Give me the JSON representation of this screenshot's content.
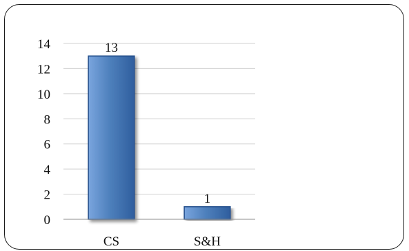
{
  "chart_data": {
    "type": "bar",
    "categories": [
      "CS",
      "S&H"
    ],
    "values": [
      13,
      1
    ],
    "data_labels": [
      "13",
      "1"
    ],
    "ylim": [
      0,
      14
    ],
    "yticks": [
      0,
      2,
      4,
      6,
      8,
      10,
      12,
      14
    ],
    "grid": true,
    "legend": "none",
    "colors": {
      "bar_fill_light": "#7aa5de",
      "bar_fill_mid": "#4f81bd",
      "bar_fill_dark": "#2f5e9e",
      "bar_stroke": "#25508c",
      "grid": "#d0d0d0",
      "axis": "#8c8c8c",
      "frame_border": "#1a1a1a"
    }
  }
}
